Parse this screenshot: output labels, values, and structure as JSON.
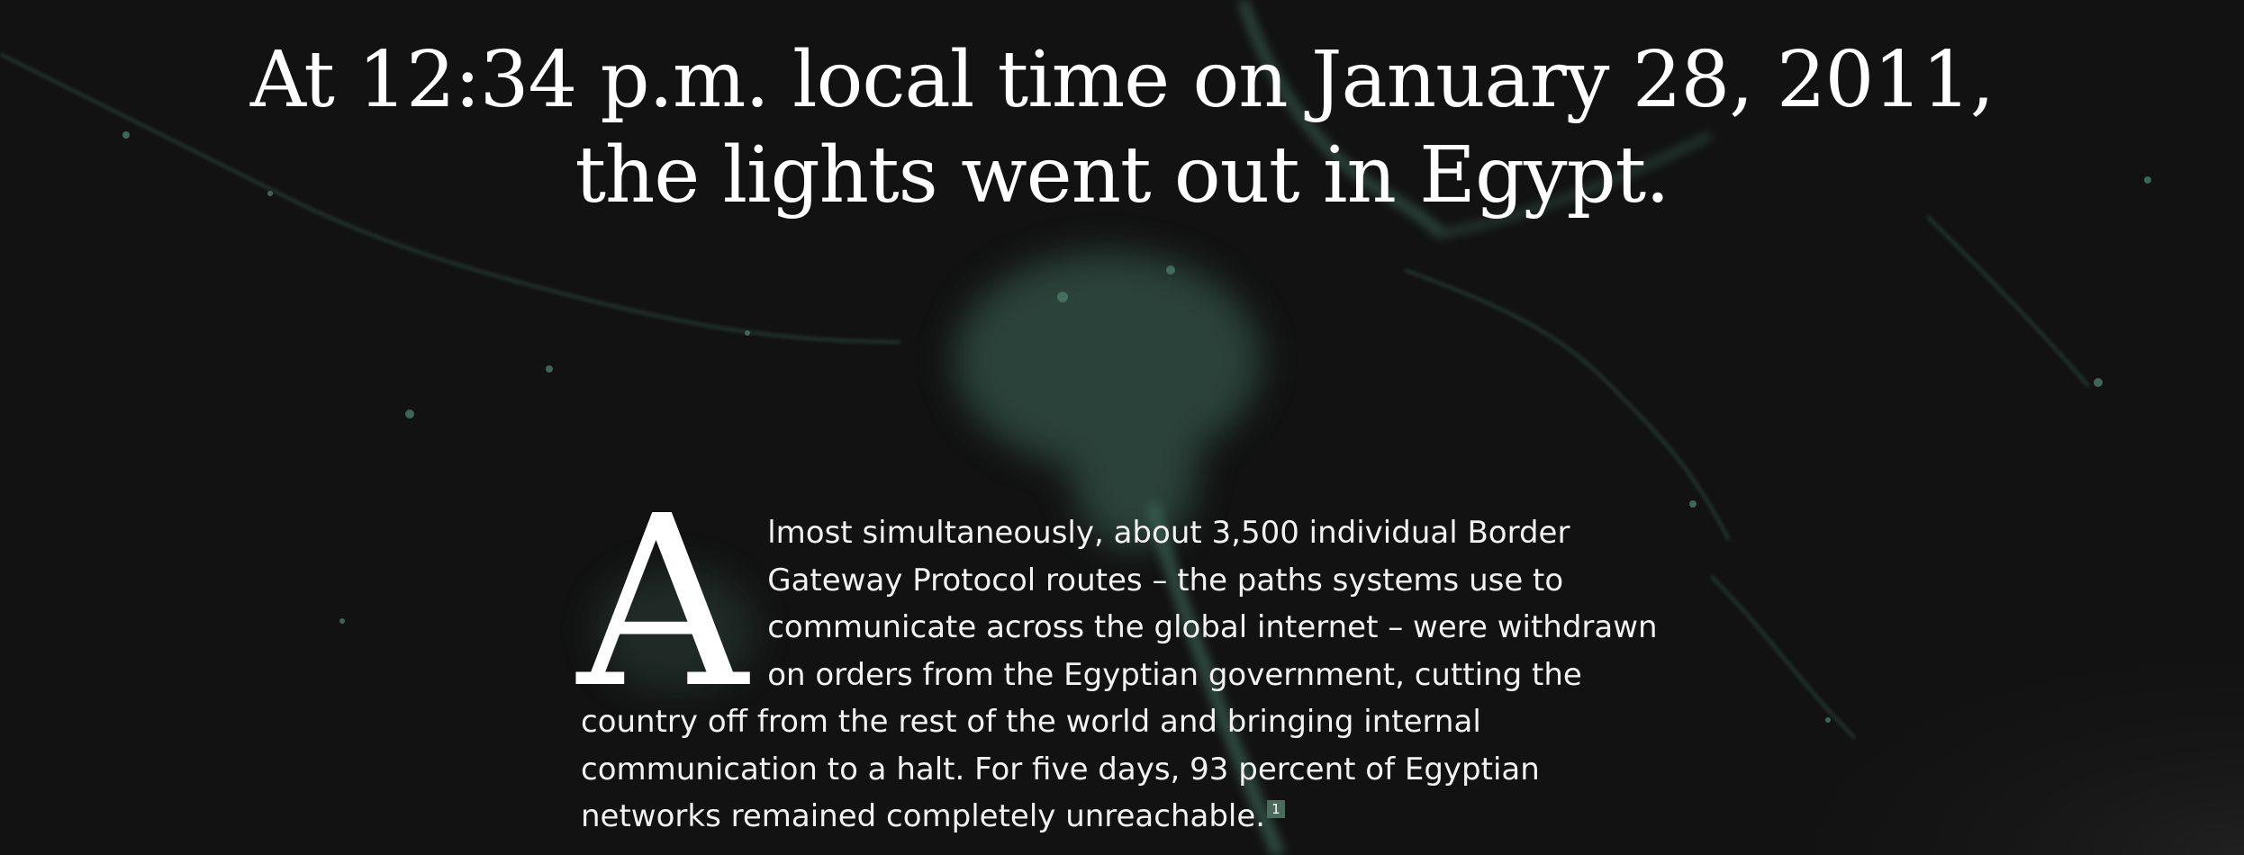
{
  "headline": {
    "text": "At 12:34 p.m. local time on January 28, 2011, the lights went out in Egypt."
  },
  "article": {
    "drop_cap": "A",
    "body": "lmost simultaneously, about 3,500 individual Border Gateway Protocol routes – the paths systems use to communicate across the global internet – were withdrawn on orders from the Egyptian government, cutting the country off from the rest of the world and bringing internal communication to a halt. For five days, 93 percent of Egyptian networks remained completely unreachable.",
    "footnote_ref": "1"
  },
  "colors": {
    "background": "#121212",
    "city_lights": "#3f6b5b",
    "text": "#ffffff",
    "footnote_badge": "#4a6a5c"
  }
}
